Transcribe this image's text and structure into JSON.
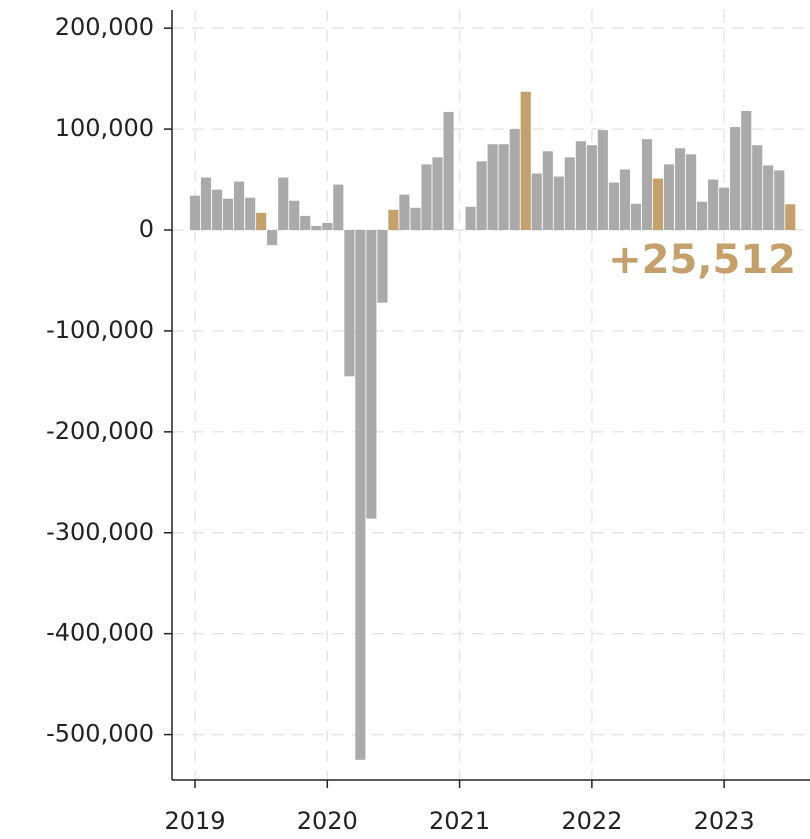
{
  "chart_data": {
    "type": "bar",
    "x": [
      2019.0,
      2019.083,
      2019.167,
      2019.25,
      2019.333,
      2019.417,
      2019.5,
      2019.583,
      2019.667,
      2019.75,
      2019.833,
      2019.917,
      2020.0,
      2020.083,
      2020.167,
      2020.25,
      2020.333,
      2020.417,
      2020.5,
      2020.583,
      2020.667,
      2020.75,
      2020.833,
      2020.917,
      2021.0,
      2021.083,
      2021.167,
      2021.25,
      2021.333,
      2021.417,
      2021.5,
      2021.583,
      2021.667,
      2021.75,
      2021.833,
      2021.917,
      2022.0,
      2022.083,
      2022.167,
      2022.25,
      2022.333,
      2022.417,
      2022.5,
      2022.583,
      2022.667,
      2022.75,
      2022.833,
      2022.917,
      2023.0,
      2023.083,
      2023.167,
      2023.25,
      2023.333,
      2023.417,
      2023.5
    ],
    "values": [
      34000,
      52000,
      40000,
      31000,
      48000,
      32000,
      17000,
      -15000,
      52000,
      29000,
      14000,
      4000,
      7000,
      45000,
      -145000,
      -525000,
      -286000,
      -72000,
      20000,
      35000,
      22000,
      65000,
      72000,
      117000,
      0,
      23000,
      68000,
      85000,
      85000,
      100000,
      137000,
      56000,
      78000,
      53000,
      72000,
      88000,
      84000,
      99000,
      47000,
      60000,
      26000,
      90000,
      51000,
      65000,
      81000,
      75000,
      28000,
      50000,
      42000,
      102000,
      118000,
      84000,
      64000,
      59000,
      25512
    ],
    "colors": [
      "#aaaaaa",
      "#aaaaaa",
      "#aaaaaa",
      "#aaaaaa",
      "#aaaaaa",
      "#aaaaaa",
      "#c4a06c",
      "#aaaaaa",
      "#aaaaaa",
      "#aaaaaa",
      "#aaaaaa",
      "#aaaaaa",
      "#aaaaaa",
      "#aaaaaa",
      "#aaaaaa",
      "#aaaaaa",
      "#aaaaaa",
      "#aaaaaa",
      "#c4a06c",
      "#aaaaaa",
      "#aaaaaa",
      "#aaaaaa",
      "#aaaaaa",
      "#aaaaaa",
      "#aaaaaa",
      "#aaaaaa",
      "#aaaaaa",
      "#aaaaaa",
      "#aaaaaa",
      "#aaaaaa",
      "#c4a06c",
      "#aaaaaa",
      "#aaaaaa",
      "#aaaaaa",
      "#aaaaaa",
      "#aaaaaa",
      "#aaaaaa",
      "#aaaaaa",
      "#aaaaaa",
      "#aaaaaa",
      "#aaaaaa",
      "#aaaaaa",
      "#c4a06c",
      "#aaaaaa",
      "#aaaaaa",
      "#aaaaaa",
      "#aaaaaa",
      "#aaaaaa",
      "#aaaaaa",
      "#aaaaaa",
      "#aaaaaa",
      "#aaaaaa",
      "#aaaaaa",
      "#aaaaaa",
      "#c4a06c"
    ],
    "value_labels": [
      null,
      null,
      null,
      null,
      null,
      null,
      null,
      null,
      null,
      null,
      null,
      null,
      null,
      null,
      null,
      null,
      null,
      null,
      null,
      null,
      null,
      null,
      null,
      null,
      null,
      null,
      null,
      null,
      null,
      null,
      null,
      null,
      null,
      null,
      null,
      null,
      null,
      null,
      null,
      null,
      null,
      null,
      null,
      null,
      null,
      null,
      null,
      null,
      null,
      null,
      null,
      null,
      null,
      null,
      "+25,512"
    ],
    "value_label_color": "#c4a06c",
    "xlim": [
      2018.826,
      2023.649
    ],
    "xticks": [
      2019,
      2020,
      2021,
      2022,
      2023
    ],
    "ylim": [
      -545000,
      218000
    ],
    "yticks": [
      {
        "value": 200000,
        "label": "200,000"
      },
      {
        "value": 100000,
        "label": "100,000"
      },
      0,
      {
        "value": -100000,
        "label": "-100,000"
      },
      {
        "value": -200000,
        "label": "-200,000"
      },
      {
        "value": -300000,
        "label": "-300,000"
      },
      {
        "value": -400000,
        "label": "-400,000"
      },
      {
        "value": -500000,
        "label": "-500,000"
      }
    ],
    "grid": true
  }
}
